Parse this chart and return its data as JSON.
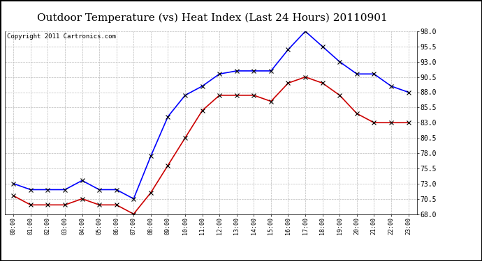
{
  "title": "Outdoor Temperature (vs) Heat Index (Last 24 Hours) 20110901",
  "copyright": "Copyright 2011 Cartronics.com",
  "x_labels": [
    "00:00",
    "01:00",
    "02:00",
    "03:00",
    "04:00",
    "05:00",
    "06:00",
    "07:00",
    "08:00",
    "09:00",
    "10:00",
    "11:00",
    "12:00",
    "13:00",
    "14:00",
    "15:00",
    "16:00",
    "17:00",
    "18:00",
    "19:00",
    "20:00",
    "21:00",
    "22:00",
    "23:00"
  ],
  "blue_data": [
    73.0,
    72.0,
    72.0,
    72.0,
    73.5,
    72.0,
    72.0,
    70.5,
    77.5,
    84.0,
    87.5,
    89.0,
    91.0,
    91.5,
    91.5,
    91.5,
    95.0,
    98.0,
    95.5,
    93.0,
    91.0,
    91.0,
    89.0,
    88.0
  ],
  "red_data": [
    71.0,
    69.5,
    69.5,
    69.5,
    70.5,
    69.5,
    69.5,
    68.0,
    71.5,
    76.0,
    80.5,
    85.0,
    87.5,
    87.5,
    87.5,
    86.5,
    89.5,
    90.5,
    89.5,
    87.5,
    84.5,
    83.0,
    83.0,
    83.0
  ],
  "blue_color": "#0000ff",
  "red_color": "#cc0000",
  "marker_color": "#000000",
  "ylim": [
    68.0,
    98.0
  ],
  "yticks": [
    68.0,
    70.5,
    73.0,
    75.5,
    78.0,
    80.5,
    83.0,
    85.5,
    88.0,
    90.5,
    93.0,
    95.5,
    98.0
  ],
  "bg_color": "#ffffff",
  "plot_bg_color": "#ffffff",
  "grid_color": "#bbbbbb",
  "title_fontsize": 11,
  "copyright_fontsize": 6.5
}
